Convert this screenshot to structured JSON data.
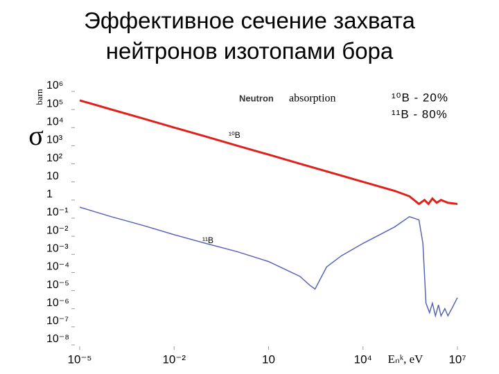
{
  "chart_data": {
    "type": "line",
    "title": "Эффективное сечение захвата нейтронов изотопами бора",
    "x_label": "Eₙᵏ, eV",
    "y_label": "σ",
    "y_unit": "barn",
    "annotations": [
      "Neutron",
      "absorption",
      "¹⁰B - 20%",
      "¹¹B - 80%"
    ],
    "log_x": true,
    "log_y": true,
    "xlim": [
      1e-05,
      10000000
    ],
    "ylim": [
      1e-08,
      1000000
    ],
    "xticks": [
      {
        "value": 1e-05,
        "label": "10⁻⁵"
      },
      {
        "value": 0.01,
        "label": "10⁻²"
      },
      10,
      {
        "value": 10000,
        "label": "10⁴"
      },
      {
        "value": 10000000,
        "label": "10⁷"
      }
    ],
    "yticks": [
      {
        "value": 1000000,
        "label": "10⁶"
      },
      {
        "value": 100000,
        "label": "10⁵"
      },
      {
        "value": 10000,
        "label": "10⁴"
      },
      {
        "value": 1000,
        "label": "10³"
      },
      {
        "value": 100,
        "label": "10²"
      },
      10,
      1,
      {
        "value": 0.1,
        "label": "10⁻¹"
      },
      {
        "value": 0.01,
        "label": "10⁻²"
      },
      {
        "value": 0.001,
        "label": "10⁻³"
      },
      {
        "value": 0.0001,
        "label": "10⁻⁴"
      },
      {
        "value": 1e-05,
        "label": "10⁻⁵"
      },
      {
        "value": 1e-06,
        "label": "10⁻⁶"
      },
      {
        "value": 1e-07,
        "label": "10⁻⁷"
      },
      {
        "value": 1e-08,
        "label": "10⁻⁸"
      }
    ],
    "series": [
      {
        "name": "¹⁰B",
        "color": "#e0201c",
        "x": [
          1e-05,
          0.0001,
          0.001,
          0.01,
          0.1,
          1,
          10,
          100,
          1000,
          10000,
          100000,
          300000,
          600000,
          900000,
          1200000,
          1600000,
          2200000,
          3000000,
          5000000,
          10000000
        ],
        "values": [
          158000,
          50000,
          16000,
          5000,
          1600,
          500,
          160,
          50,
          16,
          5,
          1.6,
          0.8,
          0.3,
          0.5,
          0.3,
          0.6,
          0.35,
          0.5,
          0.35,
          0.3
        ]
      },
      {
        "name": "¹¹B",
        "color": "#5a64b4",
        "x": [
          1e-05,
          0.0001,
          0.001,
          0.01,
          0.1,
          1,
          10,
          100,
          200,
          300,
          700,
          2000,
          10000,
          100000,
          300000,
          600000,
          800000,
          1000000,
          1300000,
          1600000,
          2000000,
          2500000,
          3000000,
          4000000,
          5000000,
          7000000,
          10000000
        ],
        "values": [
          0.2,
          0.06,
          0.02,
          0.006,
          0.002,
          0.0007,
          0.0002,
          3e-05,
          1e-05,
          6e-06,
          0.0001,
          0.0004,
          0.002,
          0.016,
          0.06,
          0.04,
          0.002,
          1e-06,
          3e-07,
          1e-06,
          2e-07,
          8e-07,
          2e-07,
          5e-07,
          2e-07,
          6e-07,
          2e-06
        ]
      }
    ]
  }
}
